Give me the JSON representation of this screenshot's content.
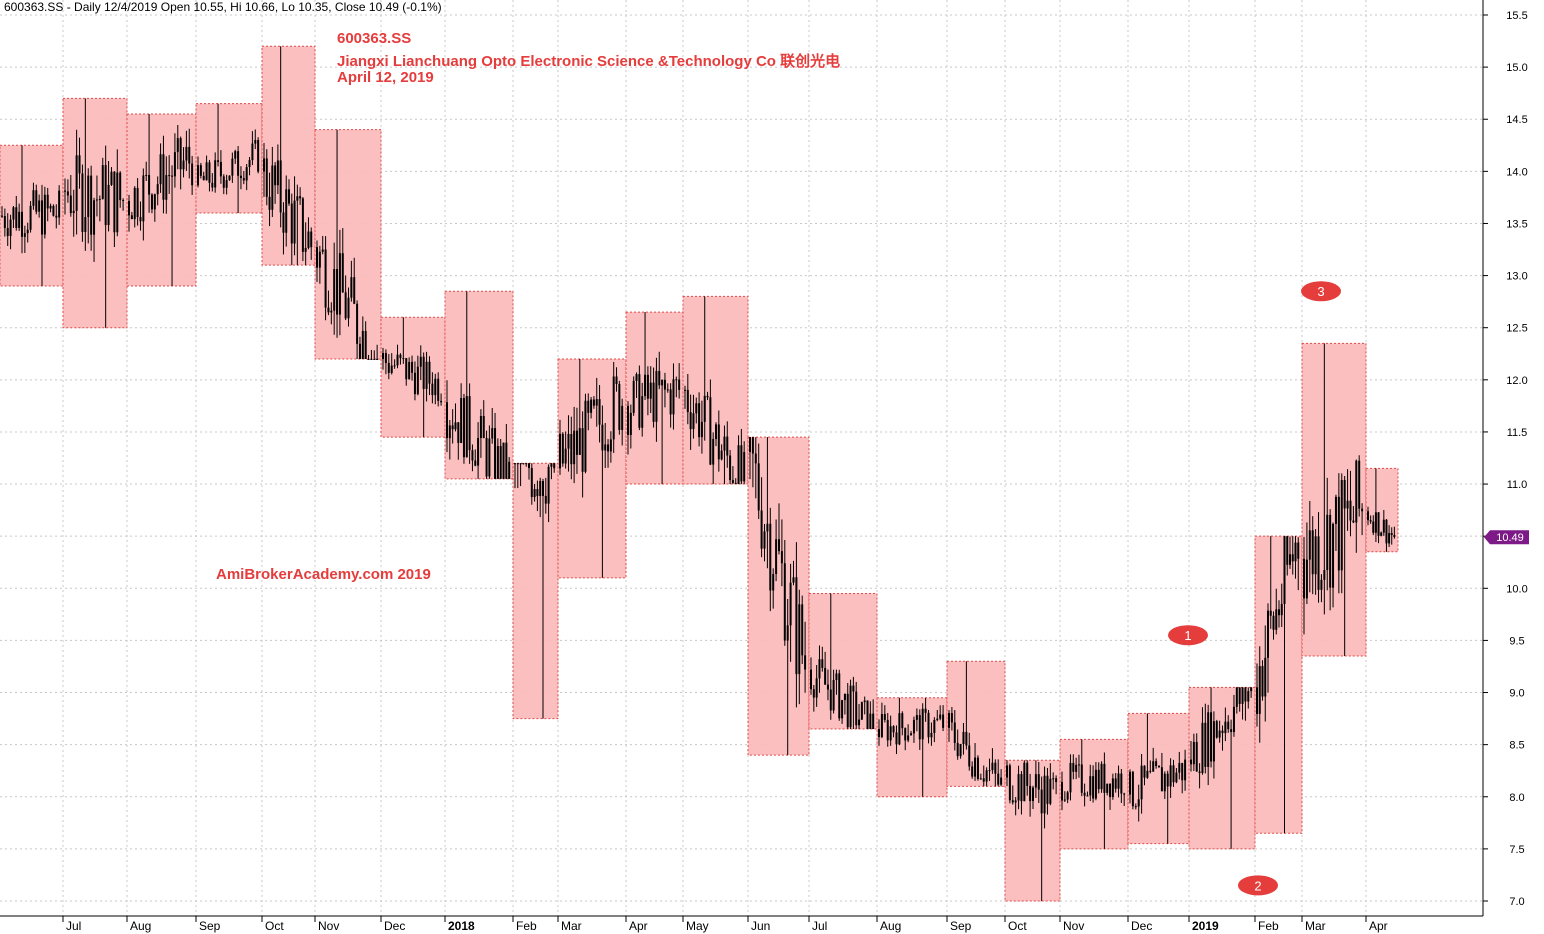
{
  "header": {
    "text": "600363.SS - Daily 12/4/2019 Open 10.55, Hi 10.66, Lo 10.35, Close 10.49 (-0.1%)"
  },
  "titles": {
    "symbol": "600363.SS",
    "company": "Jiangxi Lianchuang Opto Electronic Science &Technology Co  联创光电",
    "date": "April 12, 2019"
  },
  "watermark": "AmiBrokerAcademy.com  2019",
  "price_tag": "10.49",
  "colors": {
    "box_fill": "#fbbcbc",
    "box_border": "#e04a4a",
    "candle": "#000000",
    "text_red": "#e53c3c",
    "marker": "#e53c3c",
    "price_tag": "#7d1a87",
    "grid": "#c8c8c8"
  },
  "chart_data": {
    "type": "candlestick",
    "ylim": [
      6.85,
      15.6
    ],
    "y_ticks": [
      "7.0",
      "7.5",
      "8.0",
      "8.5",
      "9.0",
      "9.5",
      "10.0",
      "10.5",
      "11.0",
      "11.5",
      "12.0",
      "12.5",
      "13.0",
      "13.5",
      "14.0",
      "14.5",
      "15.0",
      "15.5"
    ],
    "x_ticks": [
      "Jul",
      "Aug",
      "Sep",
      "Oct",
      "Nov",
      "Dec",
      "2018",
      "Feb",
      "Mar",
      "Apr",
      "May",
      "Jun",
      "Jul",
      "Aug",
      "Sep",
      "Oct",
      "Nov",
      "Dec",
      "2019",
      "Feb",
      "Mar",
      "Apr"
    ],
    "monthly_ranges": [
      {
        "month": "Jun 2017",
        "low": 12.9,
        "high": 14.25
      },
      {
        "month": "Jul 2017",
        "low": 12.5,
        "high": 14.7
      },
      {
        "month": "Aug 2017",
        "low": 12.9,
        "high": 14.55
      },
      {
        "month": "Sep 2017",
        "low": 13.6,
        "high": 14.65
      },
      {
        "month": "Oct 2017",
        "low": 13.1,
        "high": 15.2
      },
      {
        "month": "Nov 2017",
        "low": 12.2,
        "high": 14.4
      },
      {
        "month": "Dec 2017",
        "low": 11.45,
        "high": 12.6
      },
      {
        "month": "Jan 2018",
        "low": 11.05,
        "high": 12.85
      },
      {
        "month": "Feb 2018",
        "low": 8.75,
        "high": 11.2
      },
      {
        "month": "Mar 2018",
        "low": 10.1,
        "high": 12.2
      },
      {
        "month": "Apr 2018",
        "low": 11.0,
        "high": 12.65
      },
      {
        "month": "May 2018",
        "low": 11.0,
        "high": 12.8
      },
      {
        "month": "Jun 2018",
        "low": 8.4,
        "high": 11.45
      },
      {
        "month": "Jul 2018",
        "low": 8.65,
        "high": 9.95
      },
      {
        "month": "Aug 2018",
        "low": 8.0,
        "high": 8.95
      },
      {
        "month": "Sep 2018",
        "low": 8.1,
        "high": 9.3
      },
      {
        "month": "Oct 2018",
        "low": 7.0,
        "high": 8.35
      },
      {
        "month": "Nov 2018",
        "low": 7.5,
        "high": 8.55
      },
      {
        "month": "Dec 2018",
        "low": 7.55,
        "high": 8.8
      },
      {
        "month": "Jan 2019",
        "low": 7.5,
        "high": 9.05
      },
      {
        "month": "Feb 2019",
        "low": 7.65,
        "high": 10.5
      },
      {
        "month": "Mar 2019",
        "low": 9.35,
        "high": 12.35
      },
      {
        "month": "Apr 2019",
        "low": 10.35,
        "high": 11.15
      }
    ],
    "annotations": [
      {
        "label": "1",
        "date": "Jan 2019",
        "value": 9.55
      },
      {
        "label": "2",
        "date": "Feb 2019",
        "value": 7.15
      },
      {
        "label": "3",
        "date": "Mar 2019",
        "value": 12.85
      }
    ],
    "last_close": 10.49
  }
}
